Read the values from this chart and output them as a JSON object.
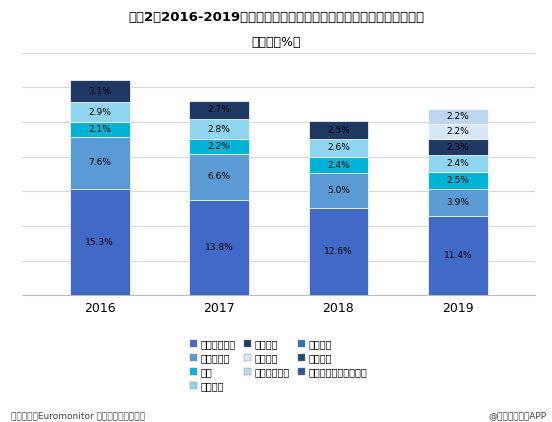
{
  "title": "图表2：2016-2019年中国宠物食品市场市占率前十公司市占率变化情况",
  "subtitle": "（单位：%）",
  "years": [
    "2016",
    "2017",
    "2018",
    "2019"
  ],
  "stack_data": {
    "2016": [
      15.3,
      7.6,
      2.1,
      2.9,
      3.1
    ],
    "2017": [
      13.8,
      6.6,
      2.2,
      2.8,
      2.7
    ],
    "2018": [
      12.6,
      5.0,
      2.4,
      2.6,
      2.5
    ],
    "2019": [
      11.4,
      3.9,
      2.5,
      2.4,
      2.3,
      2.2,
      2.2
    ]
  },
  "bar_colors": [
    "#4169C8",
    "#5B9BD5",
    "#00B4D8",
    "#90D5F0",
    "#1F3864",
    "#D6E8F7",
    "#BDD7EE"
  ],
  "legend": [
    {
      "label": "玛氏（美国）",
      "color": "#4169C8"
    },
    {
      "label": "上海比瑞吉",
      "color": "#5B9BD5"
    },
    {
      "label": "华兴",
      "color": "#00B4D8"
    },
    {
      "label": "河北荣喜",
      "color": "#90D5F0"
    },
    {
      "label": "徐州苏宠",
      "color": "#1F3864"
    },
    {
      "label": "上海依蕴",
      "color": "#D6E8F7"
    },
    {
      "label": "雀巢（瑞士）",
      "color": "#BDD7EE"
    },
    {
      "label": "山东乖宝",
      "color": "#2E75B6"
    },
    {
      "label": "烟台中宠",
      "color": "#1F4E79"
    },
    {
      "label": "加拿大冠军（加拿大）",
      "color": "#2F5597"
    }
  ],
  "source_left": "资料来源：Euromonitor 前瞻产业研究院整理",
  "source_right": "@前瞻经济学人APP",
  "bar_width": 0.5,
  "ylim": [
    0,
    35
  ],
  "background_color": "#FFFFFF",
  "grid_color": "#D8D8D8"
}
